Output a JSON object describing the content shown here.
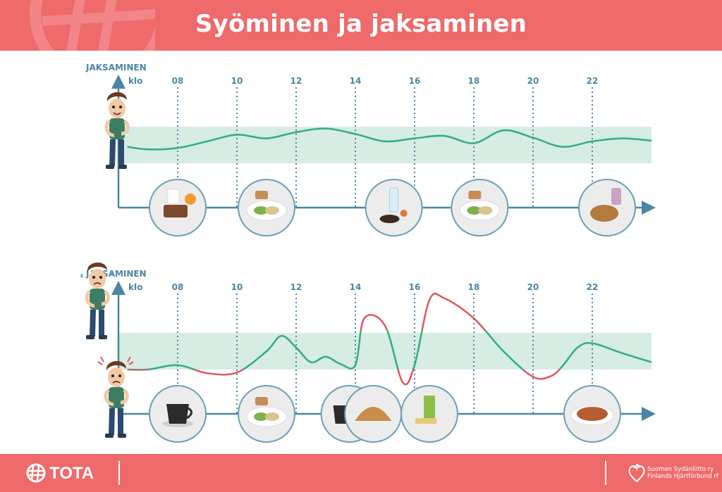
{
  "header": {
    "title": "Syöminen ja jaksaminen"
  },
  "charts": {
    "top": {
      "y_label": "JAKSAMINEN",
      "x_label": "klo"
    },
    "bottom": {
      "y_label": "JAKSAMINEN",
      "x_label": "klo"
    }
  },
  "hours": [
    "08",
    "10",
    "12",
    "14",
    "16",
    "18",
    "20",
    "22"
  ],
  "footer": {
    "logo": "TOTA",
    "org_line1": "Suomen Sydänliitto ry",
    "org_line2": "Finlands Hjärtförbund rf"
  },
  "colors": {
    "header_bg": "#ee6a6b",
    "axis": "#4b86a4",
    "band": "#d7ece3",
    "stable_line": "#2fae86",
    "low_line": "#e0575d",
    "circle_stroke": "#6a9fb5"
  },
  "chart_data": [
    {
      "type": "line",
      "title": "",
      "xlabel": "klo",
      "ylabel": "JAKSAMINEN",
      "x_ticks": [
        "08",
        "10",
        "12",
        "14",
        "16",
        "18",
        "20",
        "22"
      ],
      "series": [
        {
          "x": [
            6.3,
            7.0,
            8.0,
            9.0,
            10.0,
            11.0,
            12.0,
            13.0,
            14.0,
            15.0,
            16.0,
            17.0,
            18.0,
            19.0,
            20.0,
            21.0,
            22.0,
            23.0,
            24.0
          ],
          "y": [
            0.45,
            0.38,
            0.42,
            0.6,
            0.78,
            0.68,
            0.85,
            0.95,
            0.8,
            0.6,
            0.68,
            0.75,
            0.55,
            0.9,
            0.7,
            0.45,
            0.6,
            0.68,
            0.62
          ]
        }
      ],
      "band": [
        0,
        1
      ],
      "meals_at": [
        8.0,
        11.0,
        15.3,
        18.2,
        22.5
      ]
    },
    {
      "type": "line",
      "title": "",
      "xlabel": "klo",
      "ylabel": "JAKSAMINEN",
      "x_ticks": [
        "08",
        "10",
        "12",
        "14",
        "16",
        "18",
        "20",
        "22"
      ],
      "series": [
        {
          "x": [
            6.3,
            7.0,
            8.0,
            9.0,
            10.0,
            11.0,
            11.5,
            12.0,
            12.5,
            13.0,
            13.5,
            14.0,
            14.3,
            15.0,
            15.6,
            16.0,
            16.5,
            17.0,
            18.0,
            19.0,
            20.0,
            20.6,
            21.0,
            21.5,
            22.0,
            23.0,
            24.0
          ],
          "y": [
            0.0,
            0.0,
            0.12,
            -0.1,
            -0.08,
            0.5,
            0.92,
            0.6,
            0.2,
            0.35,
            0.15,
            0.12,
            1.4,
            1.2,
            -0.35,
            0.12,
            1.9,
            1.95,
            1.4,
            0.5,
            -0.2,
            -0.18,
            0.1,
            0.6,
            0.72,
            0.45,
            0.2
          ]
        }
      ],
      "band": [
        0,
        1
      ],
      "meals_at": [
        8.0,
        11.0,
        13.8,
        14.6,
        16.5,
        22.0
      ]
    }
  ]
}
